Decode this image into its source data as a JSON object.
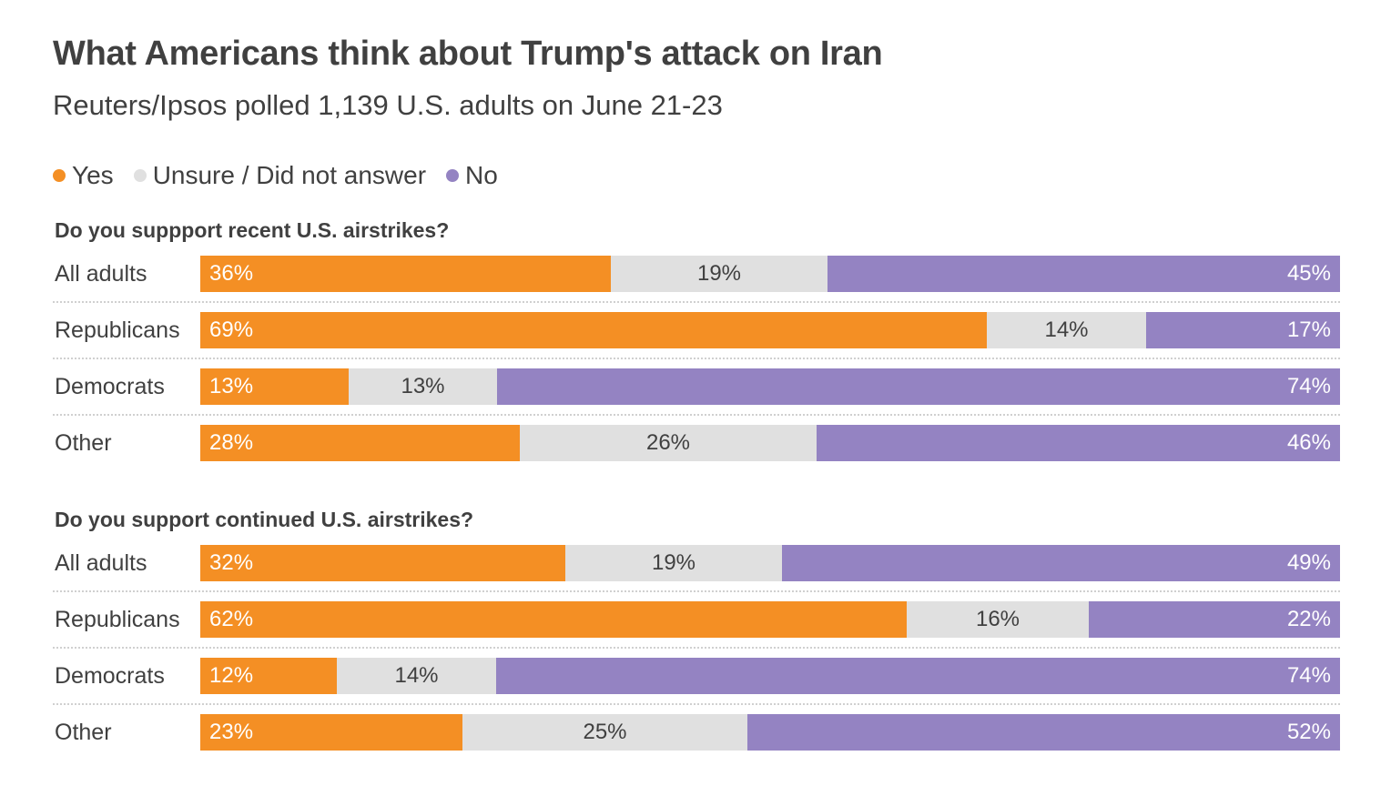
{
  "title": "What Americans think about Trump's attack on Iran",
  "subtitle": "Reuters/Ipsos polled 1,139 U.S. adults on June 21-23",
  "legend": [
    {
      "label": "Yes",
      "color": "#f48f24"
    },
    {
      "label": "Unsure / Did not answer",
      "color": "#e0e0e0"
    },
    {
      "label": "No",
      "color": "#9483c2"
    }
  ],
  "chart_data": [
    {
      "type": "bar",
      "orientation": "horizontal-stacked-100",
      "title": "Do you suppport recent U.S. airstrikes?",
      "categories": [
        "All adults",
        "Republicans",
        "Democrats",
        "Other"
      ],
      "series": [
        {
          "name": "Yes",
          "values": [
            36,
            69,
            13,
            28
          ],
          "labels": [
            "36%",
            "69%",
            "13%",
            "28%"
          ]
        },
        {
          "name": "Unsure / Did not answer",
          "values": [
            19,
            14,
            13,
            26
          ],
          "labels": [
            "19%",
            "14%",
            "13%",
            "26%"
          ]
        },
        {
          "name": "No",
          "values": [
            45,
            17,
            74,
            46
          ],
          "labels": [
            "45%",
            "17%",
            "74%",
            "46%"
          ]
        }
      ]
    },
    {
      "type": "bar",
      "orientation": "horizontal-stacked-100",
      "title": "Do you support continued U.S. airstrikes?",
      "categories": [
        "All adults",
        "Republicans",
        "Democrats",
        "Other"
      ],
      "series": [
        {
          "name": "Yes",
          "values": [
            32,
            62,
            12,
            23
          ],
          "labels": [
            "32%",
            "62%",
            "12%",
            "23%"
          ]
        },
        {
          "name": "Unsure / Did not answer",
          "values": [
            19,
            16,
            14,
            25
          ],
          "labels": [
            "19%",
            "16%",
            "14%",
            "25%"
          ]
        },
        {
          "name": "No",
          "values": [
            49,
            22,
            74,
            52
          ],
          "labels": [
            "49%",
            "22%",
            "74%",
            "52%"
          ]
        }
      ]
    }
  ]
}
